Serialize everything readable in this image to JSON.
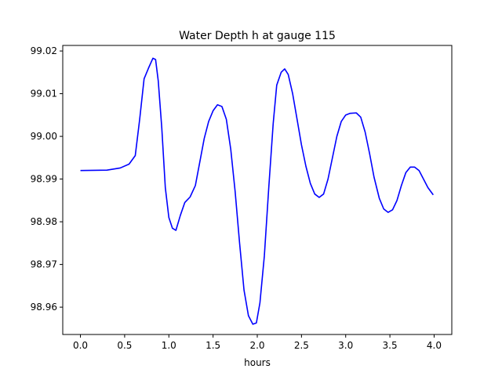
{
  "chart_data": {
    "type": "line",
    "title": "Water Depth h at gauge 115",
    "xlabel": "hours",
    "ylabel": "",
    "xlim": [
      -0.2,
      4.2
    ],
    "ylim": [
      98.9536,
      99.0213
    ],
    "xticks": [
      0.0,
      0.5,
      1.0,
      1.5,
      2.0,
      2.5,
      3.0,
      3.5,
      4.0
    ],
    "xtick_labels": [
      "0.0",
      "0.5",
      "1.0",
      "1.5",
      "2.0",
      "2.5",
      "3.0",
      "3.5",
      "4.0"
    ],
    "yticks": [
      98.96,
      98.97,
      98.98,
      98.99,
      99.0,
      99.01,
      99.02
    ],
    "ytick_labels": [
      "98.96",
      "98.97",
      "98.98",
      "98.99",
      "99.00",
      "99.01",
      "99.02"
    ],
    "grid": false,
    "series": [
      {
        "color": "#0000ff",
        "points": [
          [
            0.0,
            98.992
          ],
          [
            0.3,
            98.9921
          ],
          [
            0.45,
            98.9926
          ],
          [
            0.55,
            98.9935
          ],
          [
            0.62,
            98.9955
          ],
          [
            0.67,
            99.004
          ],
          [
            0.72,
            99.0135
          ],
          [
            0.77,
            99.016
          ],
          [
            0.82,
            99.0183
          ],
          [
            0.85,
            99.018
          ],
          [
            0.88,
            99.013
          ],
          [
            0.92,
            99.002
          ],
          [
            0.96,
            98.988
          ],
          [
            1.0,
            98.981
          ],
          [
            1.04,
            98.9785
          ],
          [
            1.08,
            98.978
          ],
          [
            1.13,
            98.9815
          ],
          [
            1.18,
            98.9845
          ],
          [
            1.24,
            98.9858
          ],
          [
            1.3,
            98.9885
          ],
          [
            1.35,
            98.994
          ],
          [
            1.4,
            98.9995
          ],
          [
            1.45,
            99.0035
          ],
          [
            1.5,
            99.006
          ],
          [
            1.55,
            99.0074
          ],
          [
            1.6,
            99.007
          ],
          [
            1.65,
            99.004
          ],
          [
            1.7,
            98.997
          ],
          [
            1.75,
            98.987
          ],
          [
            1.8,
            98.975
          ],
          [
            1.85,
            98.964
          ],
          [
            1.9,
            98.958
          ],
          [
            1.95,
            98.956
          ],
          [
            1.99,
            98.9563
          ],
          [
            2.03,
            98.961
          ],
          [
            2.08,
            98.972
          ],
          [
            2.13,
            98.988
          ],
          [
            2.18,
            99.003
          ],
          [
            2.22,
            99.012
          ],
          [
            2.27,
            99.015
          ],
          [
            2.31,
            99.0158
          ],
          [
            2.35,
            99.0145
          ],
          [
            2.4,
            99.01
          ],
          [
            2.45,
            99.004
          ],
          [
            2.5,
            98.998
          ],
          [
            2.55,
            98.993
          ],
          [
            2.6,
            98.989
          ],
          [
            2.65,
            98.9865
          ],
          [
            2.7,
            98.9857
          ],
          [
            2.75,
            98.9865
          ],
          [
            2.8,
            98.99
          ],
          [
            2.85,
            98.995
          ],
          [
            2.9,
            99.0
          ],
          [
            2.95,
            99.0035
          ],
          [
            3.0,
            99.005
          ],
          [
            3.05,
            99.0054
          ],
          [
            3.12,
            99.0055
          ],
          [
            3.17,
            99.0045
          ],
          [
            3.22,
            99.001
          ],
          [
            3.27,
            98.996
          ],
          [
            3.32,
            98.9905
          ],
          [
            3.38,
            98.9855
          ],
          [
            3.43,
            98.983
          ],
          [
            3.48,
            98.9822
          ],
          [
            3.53,
            98.9828
          ],
          [
            3.58,
            98.985
          ],
          [
            3.63,
            98.9885
          ],
          [
            3.68,
            98.9915
          ],
          [
            3.73,
            98.9928
          ],
          [
            3.78,
            98.9928
          ],
          [
            3.83,
            98.992
          ],
          [
            3.88,
            98.99
          ],
          [
            3.93,
            98.988
          ],
          [
            3.99,
            98.9863
          ]
        ]
      }
    ]
  }
}
